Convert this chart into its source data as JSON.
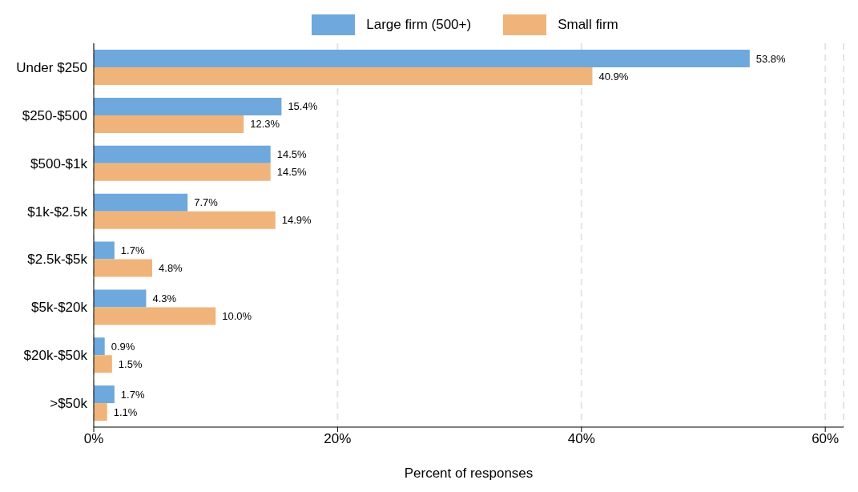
{
  "chart_data": {
    "type": "bar",
    "orientation": "horizontal",
    "xlabel": "Percent of responses",
    "categories": [
      "Under $250",
      "$250-$500",
      "$500-$1k",
      "$1k-$2.5k",
      "$2.5k-$5k",
      "$5k-$20k",
      "$20k-$50k",
      ">$50k"
    ],
    "series": [
      {
        "name": "Large firm (500+)",
        "color": "#6fa8dc",
        "values": [
          53.8,
          15.4,
          14.5,
          7.7,
          1.7,
          4.3,
          0.9,
          1.7
        ],
        "value_labels": [
          "53.8%",
          "15.4%",
          "14.5%",
          "7.7%",
          "1.7%",
          "4.3%",
          "0.9%",
          "1.7%"
        ]
      },
      {
        "name": "Small firm",
        "color": "#f0b47a",
        "values": [
          40.9,
          12.3,
          14.5,
          14.9,
          4.8,
          10.0,
          1.5,
          1.1
        ],
        "value_labels": [
          "40.9%",
          "12.3%",
          "14.5%",
          "14.9%",
          "4.8%",
          "10.0%",
          "1.5%",
          "1.1%"
        ]
      }
    ],
    "xlim": [
      0,
      61.5
    ],
    "xticks": [
      {
        "value": 0,
        "label": "0%"
      },
      {
        "value": 20,
        "label": "20%"
      },
      {
        "value": 40,
        "label": "40%"
      },
      {
        "value": 60,
        "label": "60%"
      }
    ],
    "grid": "x",
    "legend": "top"
  }
}
